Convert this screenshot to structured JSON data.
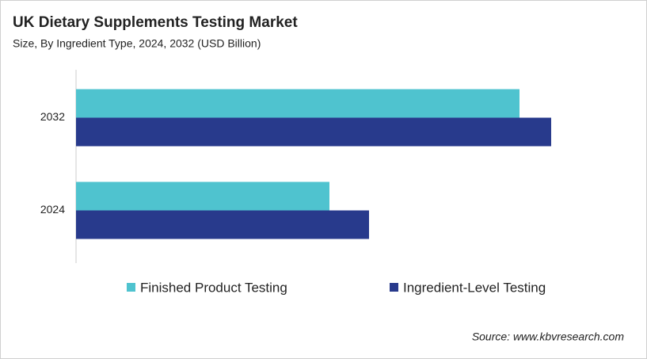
{
  "chart_data": {
    "type": "bar",
    "orientation": "horizontal",
    "title": "UK Dietary Supplements Testing Market",
    "subtitle": "Size, By Ingredient Type, 2024, 2032 (USD Billion)",
    "categories": [
      "2032",
      "2024"
    ],
    "series": [
      {
        "name": "Finished Product Testing",
        "color": "#4fc3cf",
        "values": [
          0.56,
          0.32
        ]
      },
      {
        "name": "Ingredient-Level Testing",
        "color": "#283a8c",
        "values": [
          0.6,
          0.37
        ]
      }
    ],
    "xlim": [
      0,
      0.7
    ],
    "source": "Source: www.kbvresearch.com"
  }
}
